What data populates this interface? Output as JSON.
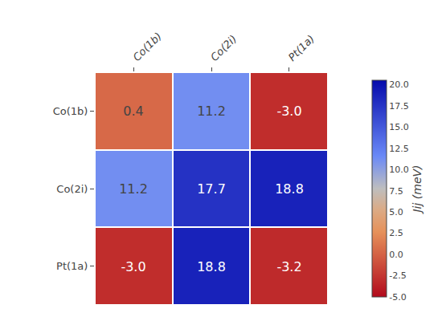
{
  "chart_data": {
    "type": "heatmap",
    "categories": [
      "Co(1b)",
      "Co(2i)",
      "Pt(1a)"
    ],
    "values": [
      [
        0.4,
        11.2,
        -3.0
      ],
      [
        11.2,
        17.7,
        18.8
      ],
      [
        -3.0,
        18.8,
        -3.2
      ]
    ],
    "value_labels": [
      [
        "0.4",
        "11.2",
        "-3.0"
      ],
      [
        "11.2",
        "17.7",
        "18.8"
      ],
      [
        "-3.0",
        "18.8",
        "-3.2"
      ]
    ],
    "data_labels": true,
    "color": "YlGn",
    "colorbar_label": "Jij (meV)",
    "colorbar_range": [
      -5.0,
      20.5
    ],
    "colorbar_ticks": [
      {
        "value": -5,
        "label": "-5.0"
      },
      -2.5,
      {
        "value": 0,
        "label": "0.0"
      },
      2.5,
      {
        "value": 5,
        "label": "5.0"
      },
      7.5,
      {
        "value": 10,
        "label": "10.0"
      },
      12.5,
      {
        "value": 15,
        "label": "15.0"
      },
      17.5,
      {
        "value": 20,
        "label": "20.0"
      }
    ],
    "grid": false
  }
}
